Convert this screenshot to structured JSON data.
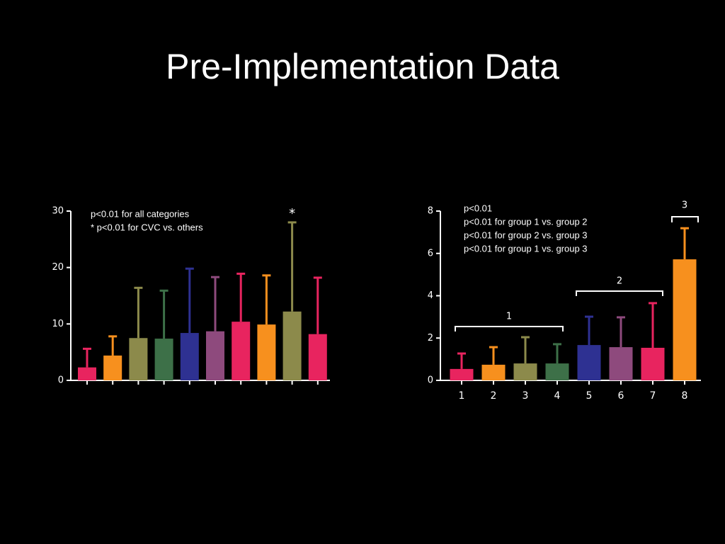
{
  "title": "Pre-Implementation Data",
  "chart_data": [
    {
      "type": "bar",
      "categories": [
        null,
        null,
        null,
        null,
        null,
        null,
        null,
        null,
        null,
        null
      ],
      "values": [
        2.3,
        4.4,
        7.5,
        7.4,
        8.4,
        8.7,
        10.4,
        9.9,
        12.2,
        8.2
      ],
      "errors": [
        3.3,
        3.4,
        8.9,
        8.5,
        11.4,
        9.6,
        8.5,
        8.7,
        15.8,
        10.0
      ],
      "colors": [
        "#e8245f",
        "#f7901e",
        "#8c8a4b",
        "#3d7048",
        "#2e3192",
        "#8e4a7d",
        "#e8245f",
        "#f7901e",
        "#8c8a4b",
        "#e8245f"
      ],
      "ylim": [
        0,
        30
      ],
      "yticks": [
        0,
        10,
        20,
        30
      ],
      "annotations": [
        "p<0.01 for all categories",
        "* p<0.01 for CVC vs. others"
      ],
      "star": "*"
    },
    {
      "type": "bar",
      "categories": [
        "1",
        "2",
        "3",
        "4",
        "5",
        "6",
        "7",
        "8"
      ],
      "values": [
        0.54,
        0.74,
        0.8,
        0.8,
        1.67,
        1.57,
        1.54,
        5.72
      ],
      "errors": [
        0.73,
        0.83,
        1.24,
        0.91,
        1.34,
        1.41,
        2.11,
        1.47
      ],
      "colors": [
        "#e8245f",
        "#f7901e",
        "#8c8a4b",
        "#3d7048",
        "#2e3192",
        "#8e4a7d",
        "#e8245f",
        "#f7901e"
      ],
      "ylim": [
        0,
        8
      ],
      "yticks": [
        0,
        2,
        4,
        6,
        8
      ],
      "annotations": [
        "p<0.01",
        "p<0.01 for group 1 vs. group 2",
        "p<0.01 for group 2 vs. group 3",
        "p<0.01 for group 1 vs. group 3"
      ],
      "groups": [
        "1",
        "2",
        "3"
      ]
    }
  ]
}
